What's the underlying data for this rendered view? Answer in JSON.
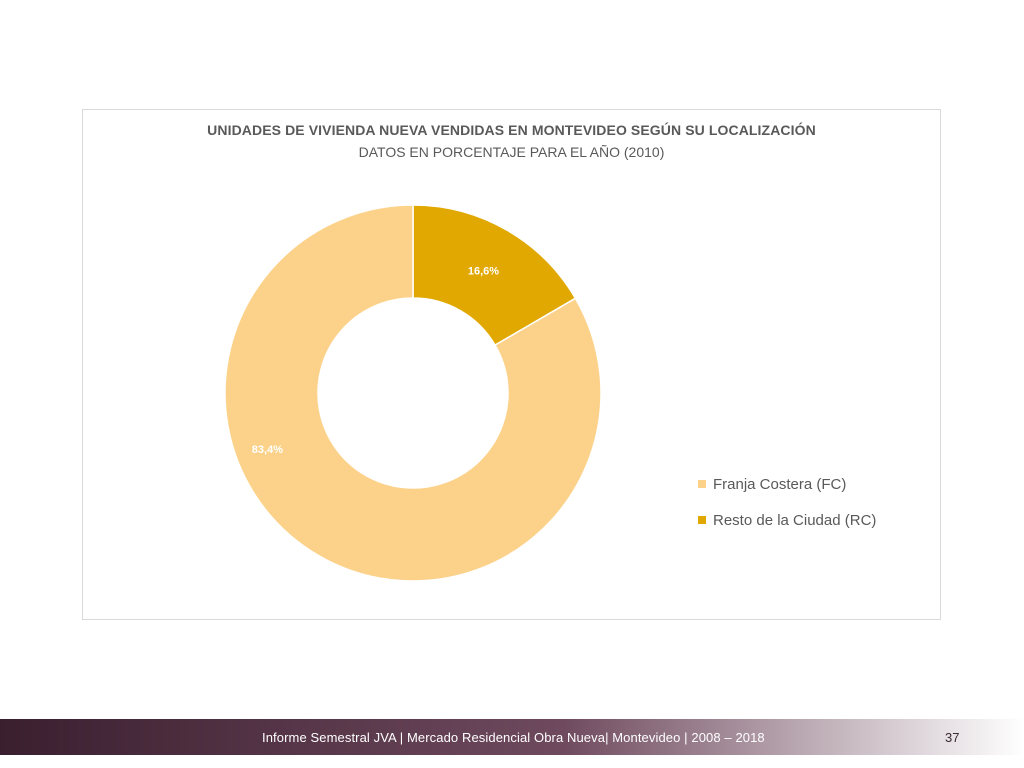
{
  "chart_data": {
    "type": "pie",
    "variant": "donut",
    "title": "UNIDADES DE VIVIENDA NUEVA VENDIDAS EN MONTEVIDEO SEGÚN SU LOCALIZACIÓN",
    "subtitle": "DATOS EN PORCENTAJE PARA EL AÑO (2010)",
    "slices": [
      {
        "name": "Franja Costera (FC)",
        "value": 83.4,
        "label": "83,4%",
        "color": "#fcd28a"
      },
      {
        "name": "Resto de la Ciudad (RC)",
        "value": 16.6,
        "label": "16,6%",
        "color": "#e0a800"
      }
    ],
    "legend_position": "right"
  },
  "footer": {
    "text": "Informe Semestral JVA | Mercado Residencial Obra Nueva| Montevideo | 2008 – 2018",
    "page_number": "37"
  }
}
